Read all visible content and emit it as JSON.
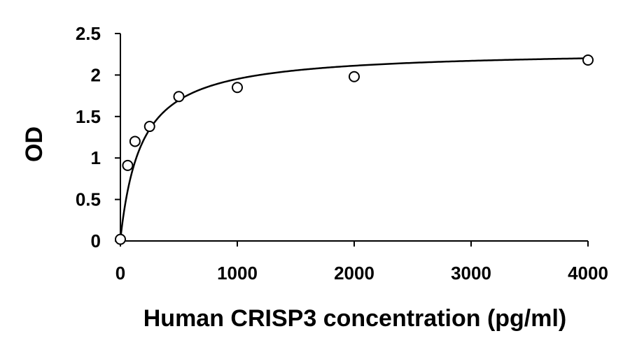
{
  "chart_data": {
    "type": "scatter",
    "title": "",
    "xlabel": "Human CRISP3 concentration (pg/ml)",
    "ylabel": "OD",
    "xlim": [
      0,
      4000
    ],
    "ylim": [
      0,
      2.5
    ],
    "x_ticks": [
      0,
      1000,
      2000,
      3000,
      4000
    ],
    "y_ticks": [
      0,
      0.5,
      1,
      1.5,
      2,
      2.5
    ],
    "y_tick_labels": [
      "0",
      "0.5",
      "1",
      "1.5",
      "2",
      "2.5"
    ],
    "x_tick_labels": [
      "0",
      "1000",
      "2000",
      "3000",
      "4000"
    ],
    "grid": false,
    "legend": "none",
    "series": [
      {
        "marker": "open-circle",
        "x": [
          0,
          62.5,
          125,
          250,
          500,
          1000,
          2000,
          4000
        ],
        "y": [
          0.02,
          0.91,
          1.2,
          1.38,
          1.74,
          1.85,
          1.98,
          2.18
        ]
      }
    ],
    "fit_curve": {
      "type": "smooth-fit",
      "shown": true
    }
  }
}
